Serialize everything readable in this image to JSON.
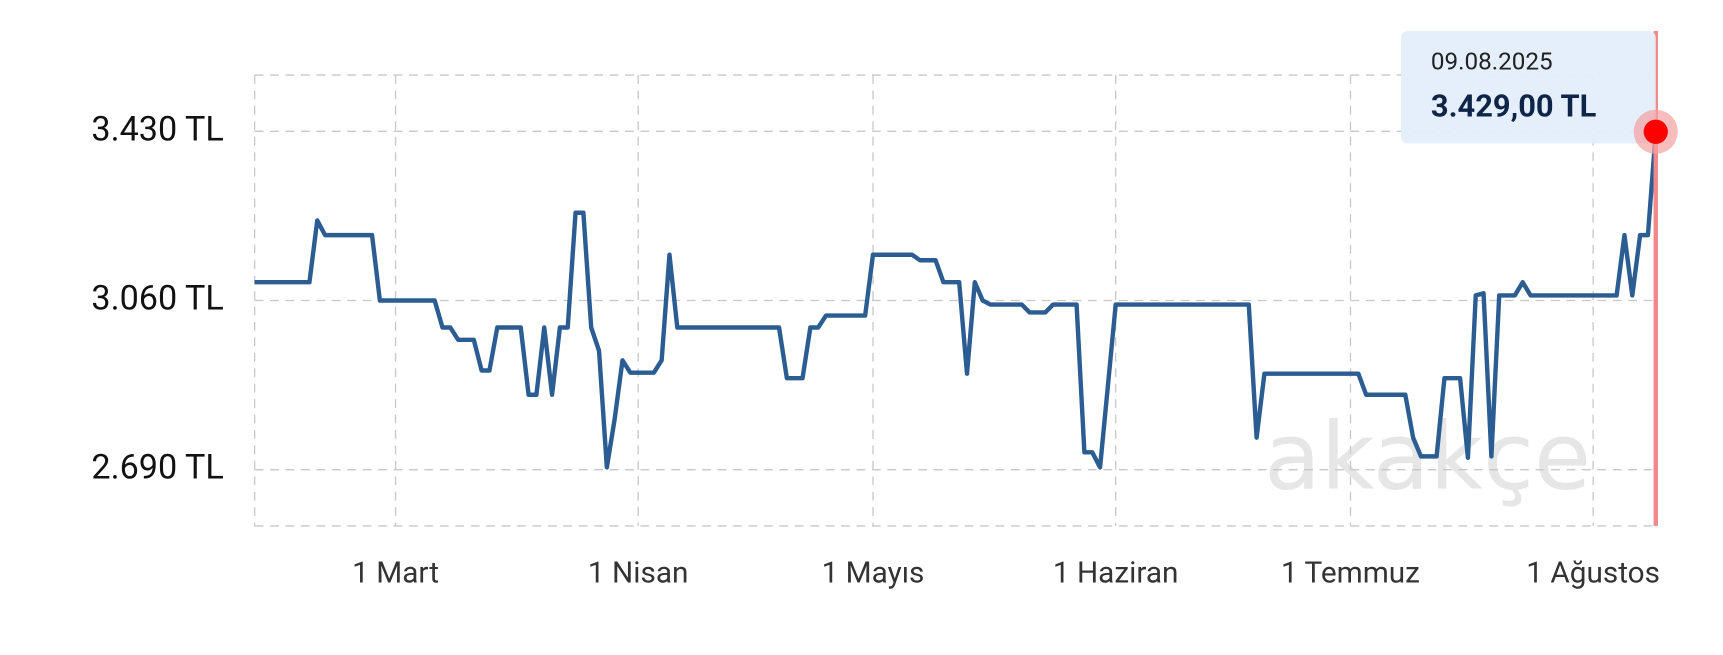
{
  "chart_data": {
    "type": "line",
    "x": [
      "2025-02-11",
      "2025-02-18",
      "2025-02-19",
      "2025-02-20",
      "2025-02-26",
      "2025-02-27",
      "2025-03-06",
      "2025-03-07",
      "2025-03-08",
      "2025-03-09",
      "2025-03-11",
      "2025-03-12",
      "2025-03-13",
      "2025-03-14",
      "2025-03-17",
      "2025-03-18",
      "2025-03-19",
      "2025-03-20",
      "2025-03-21",
      "2025-03-22",
      "2025-03-23",
      "2025-03-24",
      "2025-03-25",
      "2025-03-26",
      "2025-03-27",
      "2025-03-28",
      "2025-03-29",
      "2025-03-30",
      "2025-03-31",
      "2025-04-03",
      "2025-04-04",
      "2025-04-05",
      "2025-04-06",
      "2025-04-19",
      "2025-04-20",
      "2025-04-22",
      "2025-04-23",
      "2025-04-24",
      "2025-04-25",
      "2025-04-30",
      "2025-05-01",
      "2025-05-06",
      "2025-05-07",
      "2025-05-09",
      "2025-05-10",
      "2025-05-12",
      "2025-05-13",
      "2025-05-14",
      "2025-05-15",
      "2025-05-16",
      "2025-05-20",
      "2025-05-21",
      "2025-05-23",
      "2025-05-24",
      "2025-05-27",
      "2025-05-28",
      "2025-05-29",
      "2025-05-30",
      "2025-06-01",
      "2025-06-18",
      "2025-06-19",
      "2025-06-20",
      "2025-07-02",
      "2025-07-03",
      "2025-07-08",
      "2025-07-09",
      "2025-07-10",
      "2025-07-12",
      "2025-07-13",
      "2025-07-15",
      "2025-07-16",
      "2025-07-17",
      "2025-07-18",
      "2025-07-19",
      "2025-07-20",
      "2025-07-22",
      "2025-07-23",
      "2025-07-24",
      "2025-08-04",
      "2025-08-05",
      "2025-08-06",
      "2025-08-07",
      "2025-08-08",
      "2025-08-09"
    ],
    "values": [
      3100,
      3100,
      3235,
      3203,
      3203,
      3060,
      3060,
      3001,
      3001,
      2974,
      2974,
      2907,
      2907,
      3001,
      3001,
      2854,
      2854,
      3001,
      2854,
      3001,
      3001,
      3252,
      3252,
      3001,
      2950,
      2695,
      2801,
      2929,
      2902,
      2902,
      2929,
      3160,
      3001,
      3001,
      2890,
      2890,
      3001,
      3001,
      3027,
      3027,
      3160,
      3160,
      3148,
      3148,
      3100,
      3100,
      2900,
      3100,
      3060,
      3051,
      3051,
      3034,
      3034,
      3051,
      3051,
      2728,
      2728,
      2695,
      3051,
      3051,
      2760,
      2900,
      2900,
      2854,
      2854,
      2760,
      2719,
      2719,
      2890,
      2890,
      2716,
      3071,
      3076,
      2719,
      3071,
      3071,
      3100,
      3071,
      3071,
      3203,
      3071,
      3203,
      3203,
      3429
    ],
    "color": "#2b5d92",
    "xlim": [
      "2025-02-11",
      "2025-08-09"
    ],
    "xticks": [
      {
        "value": "2025-03-01",
        "label": "1 Mart"
      },
      {
        "value": "2025-04-01",
        "label": "1 Nisan"
      },
      {
        "value": "2025-05-01",
        "label": "1 Mayıs"
      },
      {
        "value": "2025-06-01",
        "label": "1 Haziran"
      },
      {
        "value": "2025-07-01",
        "label": "1 Temmuz"
      },
      {
        "value": "2025-08-01",
        "label": "1 Ağustos"
      }
    ],
    "ylim": [
      2567,
      3553
    ],
    "yticks": [
      {
        "value": 2690,
        "label": "2.690 TL"
      },
      {
        "value": 3060,
        "label": "3.060 TL"
      },
      {
        "value": 3430,
        "label": "3.430 TL"
      }
    ],
    "grid": true,
    "tooltip": {
      "x": "2025-08-09",
      "date": "09.08.2025",
      "value": 3429,
      "value_label": "3.429,00 TL"
    },
    "watermark": "akakçe"
  }
}
